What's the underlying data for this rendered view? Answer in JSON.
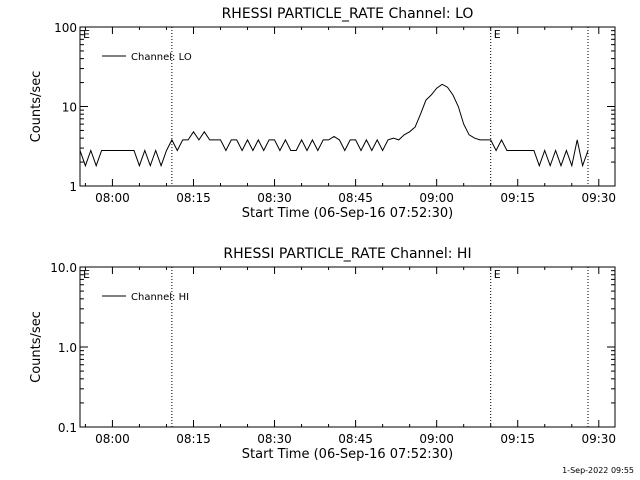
{
  "footer": {
    "timestamp": "1-Sep-2022 09:55"
  },
  "chart_data": [
    {
      "type": "line",
      "title": "RHESSI PARTICLE_RATE Channel: LO",
      "xlabel": "Start Time (06-Sep-16 07:52:30)",
      "ylabel": "Counts/sec",
      "yscale": "log",
      "xlim": [
        "07:54",
        "09:33"
      ],
      "ylim": [
        1,
        100
      ],
      "x_ticks": [
        "08:00",
        "08:15",
        "08:30",
        "08:45",
        "09:00",
        "09:15",
        "09:30"
      ],
      "y_ticks": [
        {
          "value": 1,
          "label": "1"
        },
        {
          "value": 10,
          "label": "10"
        },
        {
          "value": 100,
          "label": "100"
        }
      ],
      "legend": {
        "position": "top-left",
        "entries": [
          "Channel: LO"
        ]
      },
      "vlines": [
        "08:11",
        "09:10",
        "09:28"
      ],
      "flags": [
        {
          "label": "E",
          "x": "07:54"
        },
        {
          "label": "E",
          "x": "09:10"
        }
      ],
      "series": [
        {
          "name": "Channel: LO",
          "x": [
            "07:54",
            "07:55",
            "07:56",
            "07:57",
            "07:58",
            "08:00",
            "08:02",
            "08:04",
            "08:05",
            "08:06",
            "08:07",
            "08:08",
            "08:09",
            "08:10",
            "08:11",
            "08:12",
            "08:13",
            "08:14",
            "08:15",
            "08:16",
            "08:17",
            "08:18",
            "08:19",
            "08:20",
            "08:21",
            "08:22",
            "08:23",
            "08:24",
            "08:25",
            "08:26",
            "08:27",
            "08:28",
            "08:29",
            "08:30",
            "08:31",
            "08:32",
            "08:33",
            "08:34",
            "08:35",
            "08:36",
            "08:37",
            "08:38",
            "08:39",
            "08:40",
            "08:41",
            "08:42",
            "08:43",
            "08:44",
            "08:45",
            "08:46",
            "08:47",
            "08:48",
            "08:49",
            "08:50",
            "08:51",
            "08:52",
            "08:53",
            "08:54",
            "08:55",
            "08:56",
            "08:57",
            "08:58",
            "08:59",
            "09:00",
            "09:01",
            "09:02",
            "09:03",
            "09:04",
            "09:05",
            "09:06",
            "09:07",
            "09:08",
            "09:09",
            "09:10",
            "09:11",
            "09:12",
            "09:13",
            "09:14",
            "09:15",
            "09:16",
            "09:17",
            "09:18",
            "09:19",
            "09:20",
            "09:21",
            "09:22",
            "09:23",
            "09:24",
            "09:25",
            "09:26",
            "09:27",
            "09:28"
          ],
          "values": [
            2.8,
            1.8,
            2.8,
            1.8,
            2.8,
            2.8,
            2.8,
            2.8,
            1.8,
            2.8,
            1.8,
            2.8,
            1.8,
            2.8,
            3.8,
            2.8,
            3.8,
            3.8,
            4.8,
            3.8,
            4.8,
            3.8,
            3.8,
            3.8,
            2.8,
            3.8,
            3.8,
            2.8,
            3.8,
            2.8,
            3.8,
            2.8,
            3.8,
            3.8,
            2.8,
            3.8,
            2.8,
            2.8,
            3.8,
            2.8,
            3.8,
            2.8,
            3.8,
            3.8,
            4.2,
            3.8,
            2.8,
            3.8,
            3.8,
            2.8,
            3.8,
            2.8,
            3.8,
            2.8,
            3.8,
            4.0,
            3.8,
            4.4,
            4.8,
            5.5,
            8.0,
            12.0,
            14.0,
            17.0,
            19.0,
            17.5,
            14.0,
            10.0,
            6.0,
            4.4,
            4.0,
            3.8,
            3.8,
            3.8,
            2.8,
            3.8,
            2.8,
            2.8,
            2.8,
            2.8,
            2.8,
            2.8,
            1.8,
            2.8,
            1.8,
            2.8,
            1.8,
            2.8,
            1.8,
            3.8,
            1.8,
            2.8
          ]
        }
      ]
    },
    {
      "type": "line",
      "title": "RHESSI PARTICLE_RATE Channel: HI",
      "xlabel": "Start Time (06-Sep-16 07:52:30)",
      "ylabel": "Counts/sec",
      "yscale": "log",
      "xlim": [
        "07:54",
        "09:33"
      ],
      "ylim": [
        0.1,
        10
      ],
      "x_ticks": [
        "08:00",
        "08:15",
        "08:30",
        "08:45",
        "09:00",
        "09:15",
        "09:30"
      ],
      "y_ticks": [
        {
          "value": 0.1,
          "label": "0.1"
        },
        {
          "value": 1,
          "label": "1.0"
        },
        {
          "value": 10,
          "label": "10.0"
        }
      ],
      "legend": {
        "position": "top-left",
        "entries": [
          "Channel: HI"
        ]
      },
      "vlines": [
        "08:11",
        "09:10",
        "09:28"
      ],
      "flags": [
        {
          "label": "E",
          "x": "07:54"
        },
        {
          "label": "E",
          "x": "09:10"
        }
      ],
      "series": [
        {
          "name": "Channel: HI",
          "x": [],
          "values": []
        }
      ]
    }
  ]
}
